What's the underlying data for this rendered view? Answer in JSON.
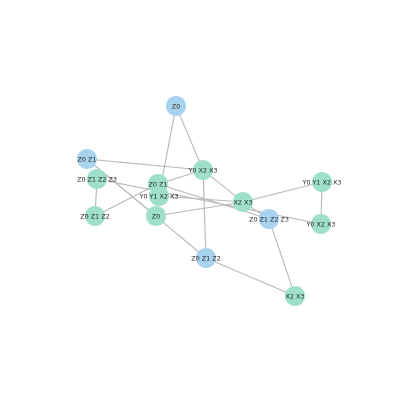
{
  "colors": {
    "blue": "#a8d3ee",
    "teal": "#9fe0cc",
    "edge": "#b8b8b8"
  },
  "nodes": [
    {
      "id": "n_z0_top",
      "label": "Z0",
      "color": "blue"
    },
    {
      "id": "n_z0z1_left",
      "label": "Z0 Z1",
      "color": "blue"
    },
    {
      "id": "n_z0z1z2z3_left",
      "label": "Z0 Z1 Z2 Z3",
      "color": "teal"
    },
    {
      "id": "n_z0z1_center",
      "label": "Z0 Z1",
      "color": "teal"
    },
    {
      "id": "n_y0y1x2x3_center",
      "label": "Y0 Y1 X2 X3",
      "color": "teal"
    },
    {
      "id": "n_y0x2x3_top",
      "label": "Y0 X2 X3",
      "color": "teal"
    },
    {
      "id": "n_x2x3_mid",
      "label": "X2 X3",
      "color": "teal"
    },
    {
      "id": "n_y0y1x2x3_right",
      "label": "Y0 Y1 X2 X3",
      "color": "teal"
    },
    {
      "id": "n_z0z1z2z3_right",
      "label": "Z0 Z1 Z2 Z3",
      "color": "blue"
    },
    {
      "id": "n_y0x2x3_right",
      "label": "Y0 X2 X3",
      "color": "teal"
    },
    {
      "id": "n_z0z1z2_left",
      "label": "Z0 Z1 Z2",
      "color": "teal"
    },
    {
      "id": "n_z0_center",
      "label": "Z0",
      "color": "teal"
    },
    {
      "id": "n_z0z1z2_bottom",
      "label": "Z0 Z1 Z2",
      "color": "blue"
    },
    {
      "id": "n_x2x3_bottom",
      "label": "X2 X3",
      "color": "teal"
    }
  ],
  "edges": [
    [
      "n_z0_top",
      "n_y0x2x3_top"
    ],
    [
      "n_z0_top",
      "n_y0y1x2x3_center"
    ],
    [
      "n_z0z1_left",
      "n_y0x2x3_top"
    ],
    [
      "n_z0z1_left",
      "n_z0_center"
    ],
    [
      "n_z0z1_left",
      "n_z0z1z2_bottom"
    ],
    [
      "n_z0z1z2z3_left",
      "n_z0z1z2_left"
    ],
    [
      "n_z0z1z2z3_left",
      "n_y0x2x3_right"
    ],
    [
      "n_z0z1_center",
      "n_y0x2x3_top"
    ],
    [
      "n_z0z1_center",
      "n_z0z1z2_left"
    ],
    [
      "n_z0z1_center",
      "n_z0z1z2z3_right"
    ],
    [
      "n_y0x2x3_top",
      "n_x2x3_mid"
    ],
    [
      "n_y0x2x3_top",
      "n_z0z1z2_bottom"
    ],
    [
      "n_x2x3_mid",
      "n_z0_center"
    ],
    [
      "n_x2x3_mid",
      "n_y0y1x2x3_right"
    ],
    [
      "n_x2x3_mid",
      "n_y0y1x2x3_center"
    ],
    [
      "n_x2x3_mid",
      "n_z0z1z2z3_right"
    ],
    [
      "n_y0y1x2x3_right",
      "n_y0x2x3_right"
    ],
    [
      "n_z0z1z2z3_right",
      "n_x2x3_bottom"
    ],
    [
      "n_z0z1z2_bottom",
      "n_x2x3_bottom"
    ]
  ]
}
